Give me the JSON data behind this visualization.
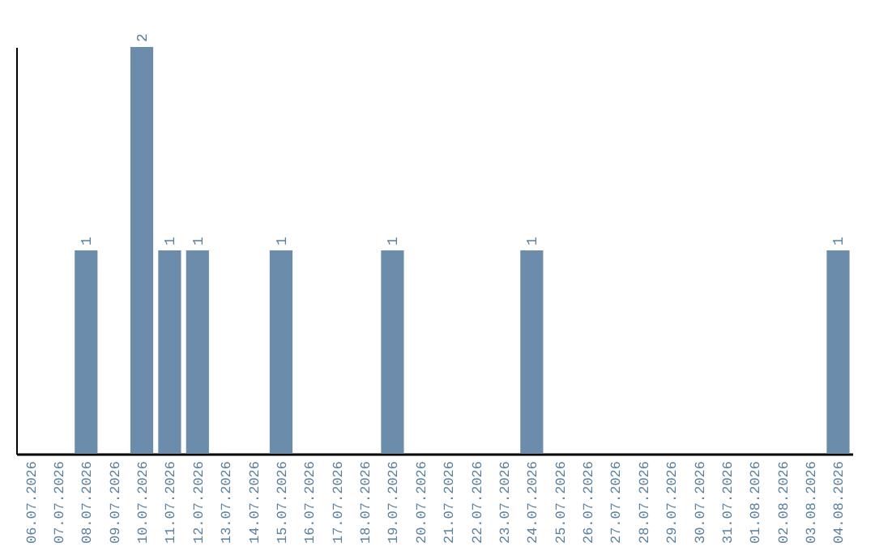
{
  "chart_data": {
    "type": "bar",
    "categories": [
      "06.07.2026",
      "07.07.2026",
      "08.07.2026",
      "09.07.2026",
      "10.07.2026",
      "11.07.2026",
      "12.07.2026",
      "13.07.2026",
      "14.07.2026",
      "15.07.2026",
      "16.07.2026",
      "17.07.2026",
      "18.07.2026",
      "19.07.2026",
      "20.07.2026",
      "21.07.2026",
      "22.07.2026",
      "23.07.2026",
      "24.07.2026",
      "25.07.2026",
      "26.07.2026",
      "27.07.2026",
      "28.07.2026",
      "29.07.2026",
      "30.07.2026",
      "31.07.2026",
      "01.08.2026",
      "02.08.2026",
      "03.08.2026",
      "04.08.2026"
    ],
    "values": [
      0,
      0,
      1,
      0,
      2,
      1,
      1,
      0,
      0,
      1,
      0,
      0,
      0,
      1,
      0,
      0,
      0,
      0,
      1,
      0,
      0,
      0,
      0,
      0,
      0,
      0,
      0,
      0,
      0,
      1
    ],
    "value_labels": [
      null,
      null,
      "1",
      null,
      "2",
      "1",
      "1",
      null,
      null,
      "1",
      null,
      null,
      null,
      "1",
      null,
      null,
      null,
      null,
      "1",
      null,
      null,
      null,
      null,
      null,
      null,
      null,
      null,
      null,
      null,
      "1"
    ],
    "color": "#6b8cab",
    "tick_labels": "x",
    "grid": false
  }
}
